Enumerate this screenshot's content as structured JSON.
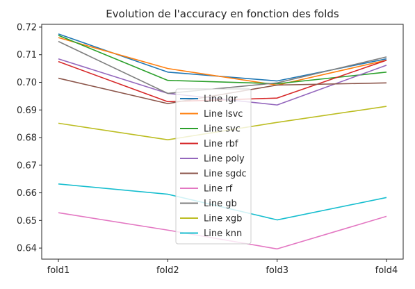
{
  "chart_data": {
    "type": "line",
    "title": "Evolution de l'accuracy en fonction des folds",
    "xlabel": "",
    "ylabel": "",
    "categories": [
      "fold1",
      "fold2",
      "fold3",
      "fold4"
    ],
    "ylim": [
      0.636,
      0.721
    ],
    "yticks": [
      0.64,
      0.65,
      0.66,
      0.67,
      0.68,
      0.69,
      0.7,
      0.71,
      0.72
    ],
    "ytick_labels": [
      "0.64",
      "0.65",
      "0.66",
      "0.67",
      "0.68",
      "0.69",
      "0.70",
      "0.71",
      "0.72"
    ],
    "grid": false,
    "legend_position": "center",
    "series": [
      {
        "name": "Line lgr",
        "color": "#1f77b4",
        "values": [
          0.7175,
          0.7037,
          0.7005,
          0.7085
        ]
      },
      {
        "name": "Line lsvc",
        "color": "#ff7f0e",
        "values": [
          0.7162,
          0.705,
          0.699,
          0.708
        ]
      },
      {
        "name": "Line svc",
        "color": "#2ca02c",
        "values": [
          0.717,
          0.7007,
          0.6995,
          0.7037
        ]
      },
      {
        "name": "Line rbf",
        "color": "#d62728",
        "values": [
          0.7075,
          0.693,
          0.6943,
          0.708
        ]
      },
      {
        "name": "Line poly",
        "color": "#9467bd",
        "values": [
          0.7085,
          0.696,
          0.6918,
          0.7062
        ]
      },
      {
        "name": "Line sgdc",
        "color": "#8c564b",
        "values": [
          0.7015,
          0.6923,
          0.699,
          0.6998
        ]
      },
      {
        "name": "Line rf",
        "color": "#e377c2",
        "values": [
          0.6528,
          0.6465,
          0.6397,
          0.6515
        ]
      },
      {
        "name": "Line gb",
        "color": "#7f7f7f",
        "values": [
          0.7148,
          0.696,
          0.6998,
          0.7092
        ]
      },
      {
        "name": "Line xgb",
        "color": "#bcbd22",
        "values": [
          0.6852,
          0.6792,
          0.6855,
          0.6913
        ]
      },
      {
        "name": "Line knn",
        "color": "#17becf",
        "values": [
          0.6632,
          0.6595,
          0.6502,
          0.6583
        ]
      }
    ]
  }
}
